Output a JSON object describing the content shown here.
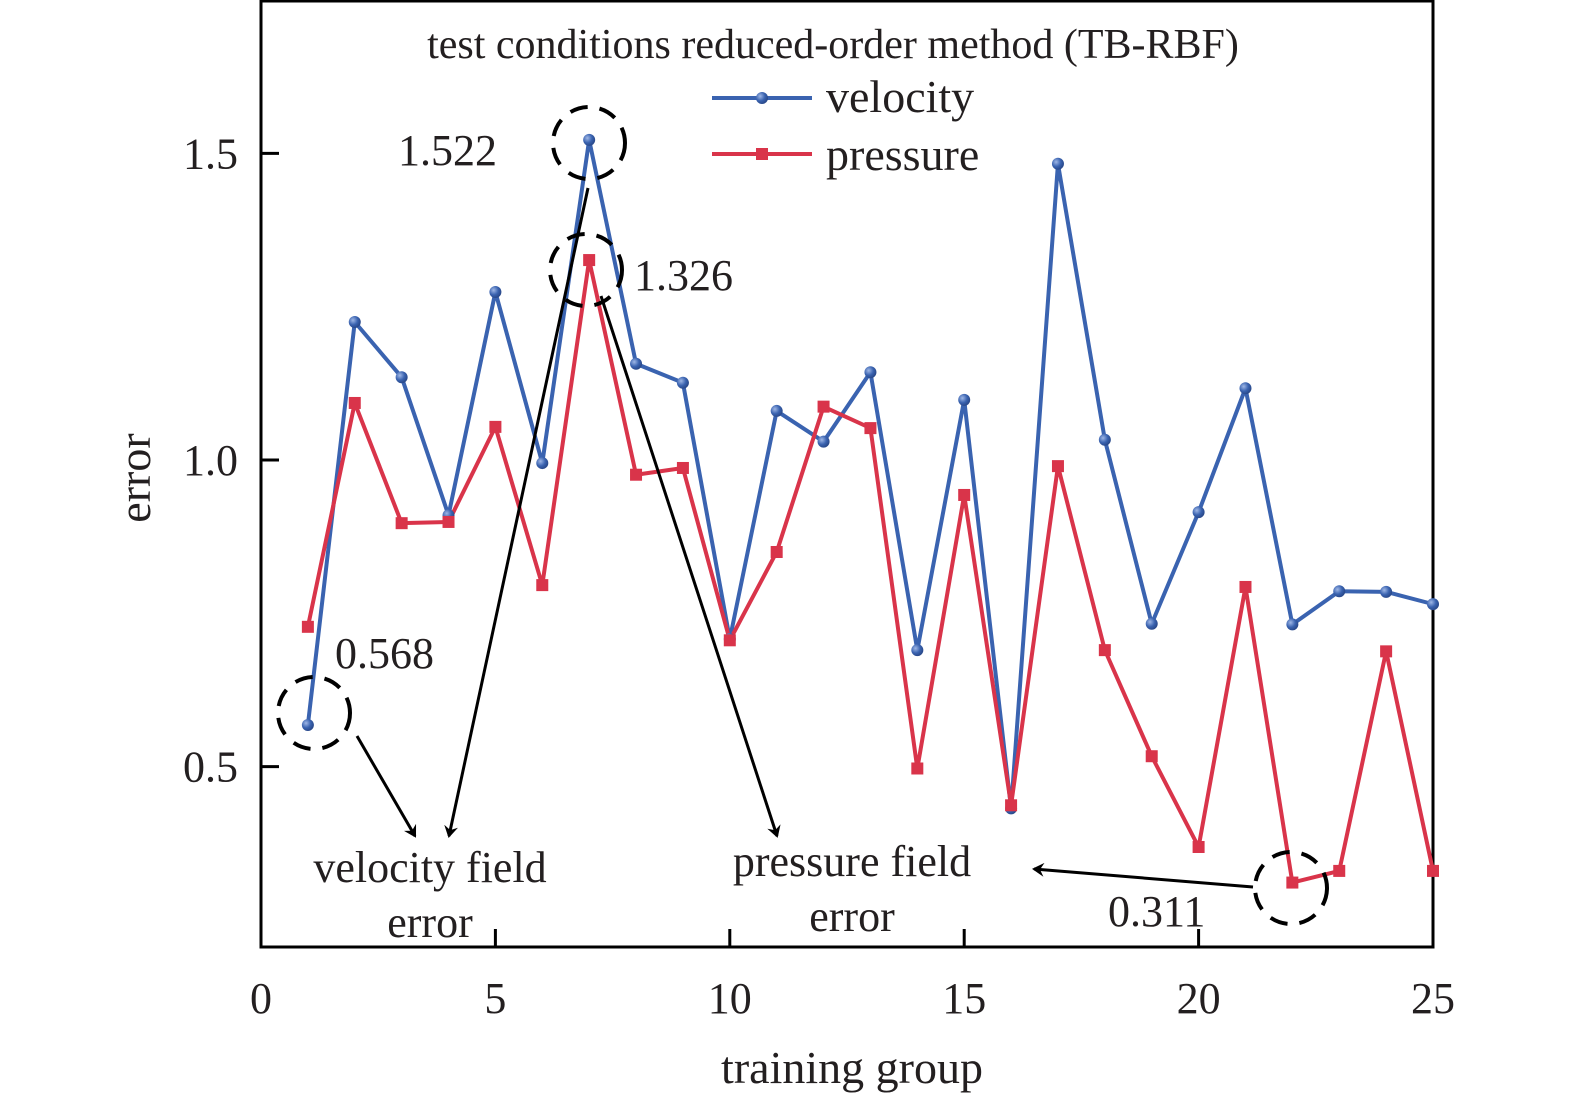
{
  "chart_data": {
    "type": "line",
    "title": "",
    "xlabel": "training group",
    "ylabel": "error",
    "xlim": [
      0,
      25
    ],
    "ylim": [
      0.2,
      1.75
    ],
    "xticks": [
      0,
      5,
      10,
      15,
      20,
      25
    ],
    "xtick_labels": [
      "0",
      "5",
      "10",
      "15",
      "20",
      "25"
    ],
    "yticks": [
      0.5,
      1.0,
      1.5
    ],
    "ytick_labels": [
      "0.5",
      "1.0",
      "1.5"
    ],
    "grid": false,
    "legend": {
      "title": "test conditions reduced-order method (TB-RBF)",
      "placement": "top-center",
      "entries": [
        "velocity",
        "pressure"
      ]
    },
    "x": [
      1,
      2,
      3,
      4,
      5,
      6,
      7,
      8,
      9,
      10,
      11,
      12,
      13,
      14,
      15,
      16,
      17,
      18,
      19,
      20,
      21,
      22,
      23,
      24,
      25
    ],
    "series": [
      {
        "name": "velocity",
        "color": "#3a63b0",
        "marker": "circle",
        "values": [
          0.568,
          1.225,
          1.135,
          0.91,
          1.274,
          0.995,
          1.522,
          1.157,
          1.126,
          0.708,
          1.08,
          1.03,
          1.143,
          0.69,
          1.098,
          0.432,
          1.483,
          1.033,
          0.733,
          0.915,
          1.117,
          0.732,
          0.786,
          0.785,
          0.765
        ]
      },
      {
        "name": "pressure",
        "color": "#d9344a",
        "marker": "square",
        "values": [
          0.728,
          1.093,
          0.897,
          0.899,
          1.054,
          0.796,
          1.326,
          0.976,
          0.987,
          0.706,
          0.85,
          1.087,
          1.052,
          0.497,
          0.943,
          0.437,
          0.99,
          0.69,
          0.517,
          0.369,
          0.793,
          0.311,
          0.33,
          0.688,
          0.33
        ]
      }
    ],
    "annotations": [
      {
        "text": "1.522",
        "target_x": 7,
        "target_series": "velocity"
      },
      {
        "text": "1.326",
        "target_x": 7,
        "target_series": "pressure"
      },
      {
        "text": "0.568",
        "target_x": 1,
        "target_series": "velocity"
      },
      {
        "text": "0.311",
        "target_x": 22,
        "target_series": "pressure"
      }
    ],
    "callouts": [
      {
        "line1": "velocity field",
        "line2": "error",
        "points_from": [
          "0.568",
          "1.522"
        ]
      },
      {
        "line1": "pressure field",
        "line2": "error",
        "points_from": [
          "1.326",
          "0.311"
        ]
      }
    ]
  }
}
